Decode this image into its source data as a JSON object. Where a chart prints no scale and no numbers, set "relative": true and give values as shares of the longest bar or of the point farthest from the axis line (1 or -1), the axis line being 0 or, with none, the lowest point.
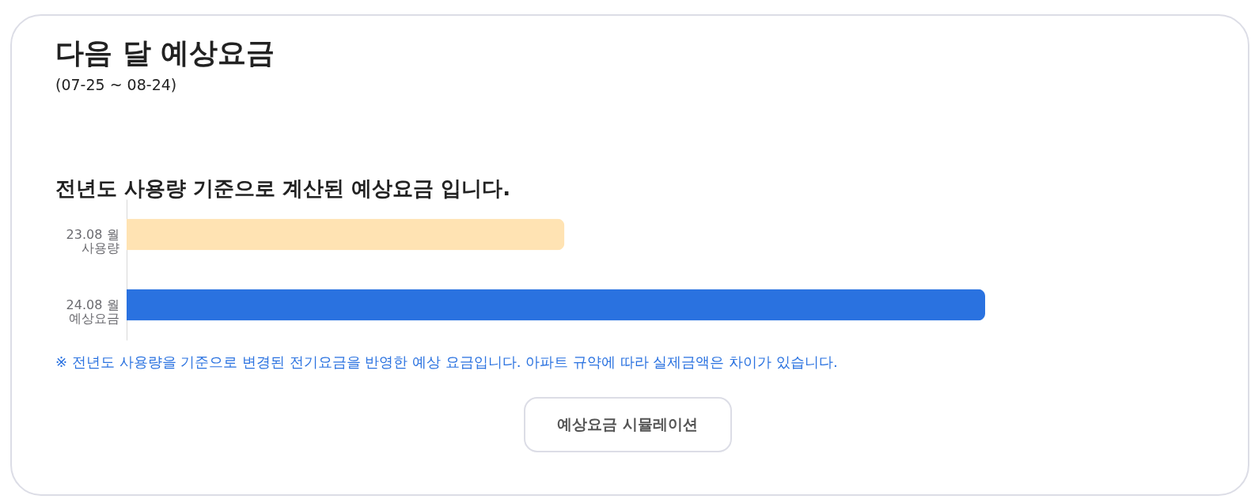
{
  "chart_data": {
    "type": "bar",
    "orientation": "horizontal",
    "relative": true,
    "title": "다음 달 예상요금",
    "subtitle": "(07-25 ~ 08-24)",
    "categories": [
      "23.08 월\n사용량",
      "24.08 월\n예상요금"
    ],
    "values": [
      0.51,
      1
    ],
    "colors": [
      "#ffe3b3",
      "#2a72e0"
    ],
    "annotations": [
      "전년도 사용량 기준으로 계산된 예상요금 입니다.",
      "※ 전년도 사용량을 기준으로 변경된 전기요금을 반영한 예상 요금입니다. 아파트 규약에 따라 실제금액은 차이가 있습니다.",
      "예상요금 시뮬레이션"
    ]
  }
}
